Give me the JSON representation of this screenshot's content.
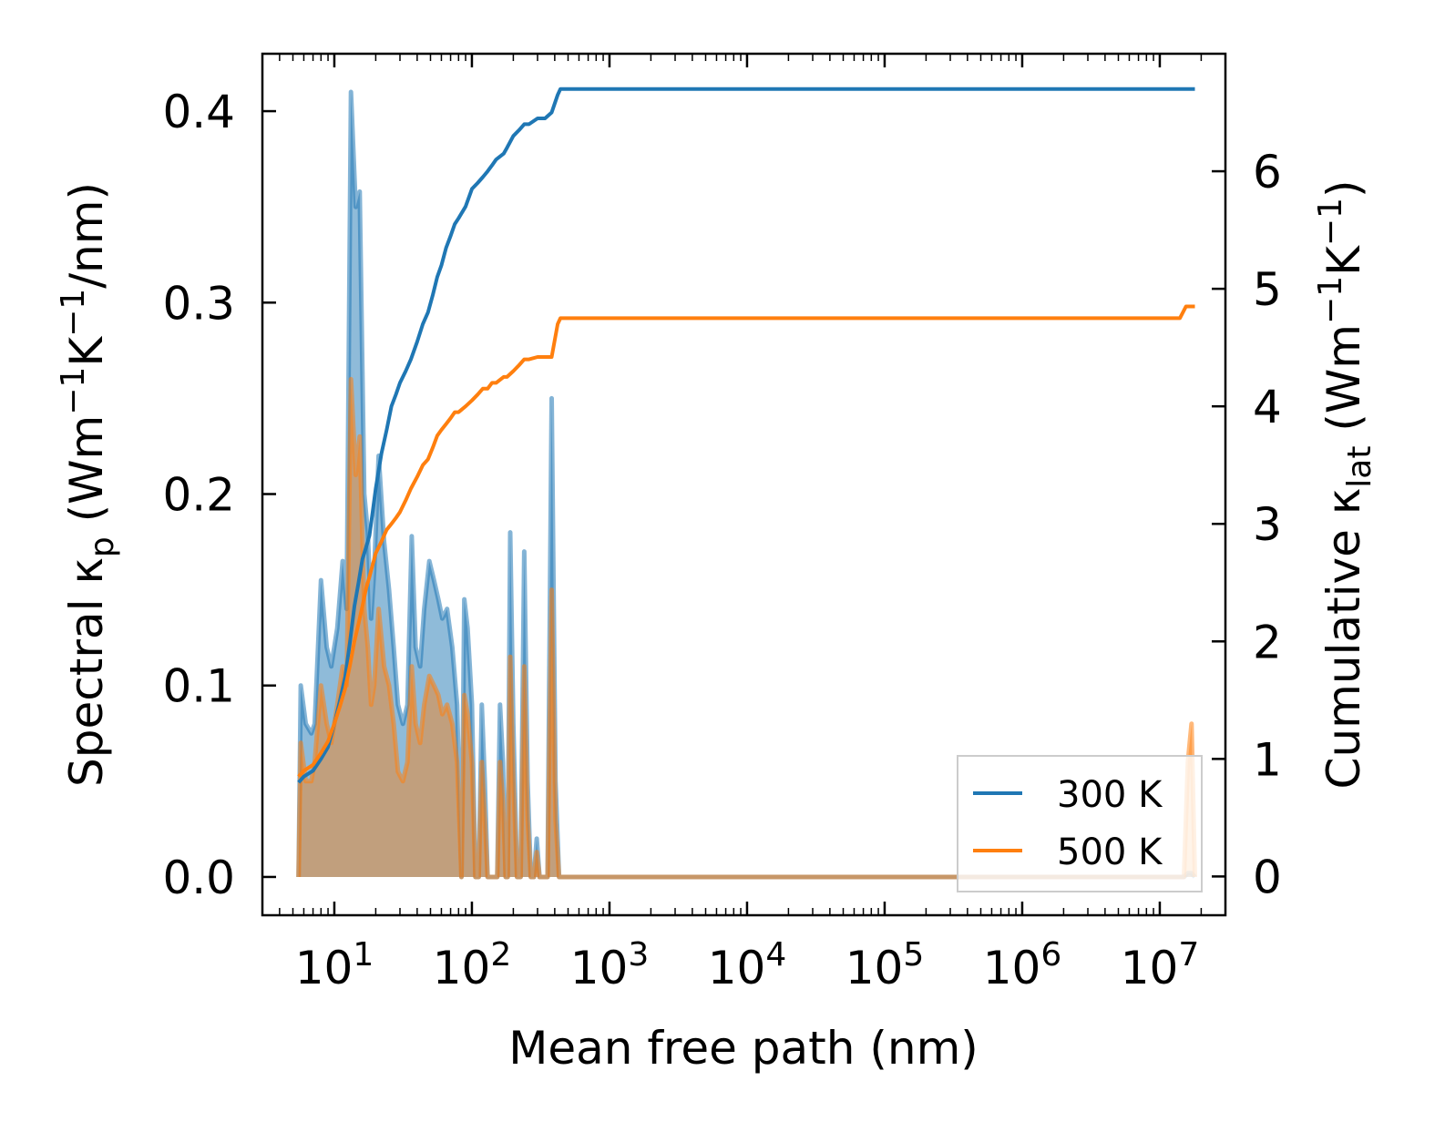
{
  "chart_data": {
    "type": "line",
    "title": "",
    "xlabel": "Mean free path (nm)",
    "x_scale": "log",
    "xlim": [
      3.0,
      30000000
    ],
    "x_ticks": [
      {
        "value": 10,
        "base": "10",
        "exp": "1"
      },
      {
        "value": 100,
        "base": "10",
        "exp": "2"
      },
      {
        "value": 1000,
        "base": "10",
        "exp": "3"
      },
      {
        "value": 10000,
        "base": "10",
        "exp": "4"
      },
      {
        "value": 100000,
        "base": "10",
        "exp": "5"
      },
      {
        "value": 1000000,
        "base": "10",
        "exp": "6"
      },
      {
        "value": 10000000,
        "base": "10",
        "exp": "7"
      }
    ],
    "left_axis": {
      "label_parts": [
        "Spectral κ",
        "p",
        " (Wm",
        "−1",
        "K",
        "−1",
        "/nm)"
      ],
      "label_roles": [
        "text",
        "sub",
        "text",
        "sup",
        "text",
        "sup",
        "text"
      ],
      "ylim": [
        -0.02,
        0.43
      ],
      "ticks": [
        0.0,
        0.1,
        0.2,
        0.3,
        0.4
      ],
      "tick_labels": [
        "0.0",
        "0.1",
        "0.2",
        "0.3",
        "0.4"
      ]
    },
    "right_axis": {
      "label_parts": [
        "Cumulative κ",
        "lat",
        " (Wm",
        "−1",
        "K",
        "−1",
        ")"
      ],
      "label_roles": [
        "text",
        "sub",
        "text",
        "sup",
        "text",
        "sup",
        "text"
      ],
      "ylim": [
        -0.33,
        7.0
      ],
      "ticks": [
        0,
        1,
        2,
        3,
        4,
        5,
        6
      ],
      "tick_labels": [
        "0",
        "1",
        "2",
        "3",
        "4",
        "5",
        "6"
      ]
    },
    "legend": {
      "position": "lower right",
      "entries": [
        {
          "label": "300 K",
          "color": "#1f77b4"
        },
        {
          "label": "500 K",
          "color": "#ff7f0e"
        }
      ]
    },
    "series": [
      {
        "name": "300 K",
        "color": "#1f77b4",
        "fill_color": "#1f77b4",
        "spectral_x": [
          5.5,
          5.7,
          6.2,
          6.8,
          7.2,
          8.0,
          8.8,
          9.5,
          10.5,
          11.5,
          12.3,
          13.2,
          14.3,
          15.3,
          16.5,
          17.5,
          18.5,
          19.5,
          21,
          23,
          25,
          27,
          29,
          31.5,
          34,
          36.5,
          39,
          42,
          45,
          49,
          53,
          57,
          61,
          66,
          72,
          78,
          84,
          88,
          93,
          100,
          106,
          112,
          118,
          124,
          130,
          145,
          153,
          160,
          168,
          176,
          182,
          190,
          200,
          213,
          226,
          240,
          254,
          268,
          282,
          296,
          310,
          330,
          355,
          380,
          405,
          430,
          460,
          500,
          15000000,
          16000000,
          17000000,
          18000000
        ],
        "spectral_y": [
          0.0,
          0.1,
          0.08,
          0.075,
          0.08,
          0.155,
          0.12,
          0.11,
          0.13,
          0.165,
          0.14,
          0.41,
          0.35,
          0.358,
          0.2,
          0.18,
          0.135,
          0.16,
          0.22,
          0.175,
          0.15,
          0.12,
          0.09,
          0.08,
          0.09,
          0.178,
          0.12,
          0.11,
          0.14,
          0.165,
          0.155,
          0.145,
          0.135,
          0.14,
          0.12,
          0.09,
          0.0,
          0.145,
          0.13,
          0.09,
          0.0,
          0.0,
          0.09,
          0.05,
          0.0,
          0.0,
          0.0,
          0.09,
          0.06,
          0.0,
          0.0,
          0.18,
          0.08,
          0.0,
          0.0,
          0.17,
          0.05,
          0.0,
          0.0,
          0.02,
          0.0,
          0.0,
          0.0,
          0.25,
          0.05,
          0.0,
          0.0,
          0.0,
          0.0,
          0.002,
          0.002,
          0.0
        ],
        "cumulative_x": [
          5.5,
          6,
          7,
          8,
          9,
          10,
          11,
          12,
          13,
          14,
          15,
          16,
          17,
          18,
          19,
          20,
          22,
          24,
          26,
          28,
          30,
          33,
          36,
          40,
          44,
          48,
          52,
          56,
          60,
          65,
          70,
          75,
          80,
          90,
          100,
          110,
          120,
          130,
          140,
          150,
          170,
          180,
          200,
          220,
          240,
          260,
          300,
          340,
          380,
          420,
          440,
          500,
          1000,
          10000,
          100000,
          1000000,
          10000000,
          18000000
        ],
        "cumulative_y": [
          0.8,
          0.85,
          0.9,
          1.0,
          1.1,
          1.3,
          1.5,
          1.7,
          2.0,
          2.3,
          2.5,
          2.7,
          2.8,
          2.9,
          3.1,
          3.3,
          3.6,
          3.8,
          4.0,
          4.1,
          4.2,
          4.3,
          4.4,
          4.55,
          4.7,
          4.8,
          4.95,
          5.1,
          5.2,
          5.35,
          5.45,
          5.55,
          5.6,
          5.7,
          5.85,
          5.9,
          5.95,
          6.0,
          6.05,
          6.1,
          6.15,
          6.2,
          6.3,
          6.35,
          6.4,
          6.4,
          6.45,
          6.45,
          6.5,
          6.65,
          6.7,
          6.7,
          6.7,
          6.7,
          6.7,
          6.7,
          6.7,
          6.7
        ]
      },
      {
        "name": "500 K",
        "color": "#ff7f0e",
        "fill_color": "#ff7f0e",
        "spectral_x": [
          5.5,
          5.7,
          6.2,
          6.8,
          7.2,
          8.0,
          8.8,
          9.5,
          10.5,
          11.5,
          12.3,
          13.2,
          14.3,
          15.3,
          16.5,
          17.5,
          18.5,
          19.5,
          21,
          23,
          25,
          27,
          29,
          31.5,
          34,
          36.5,
          39,
          42,
          45,
          49,
          53,
          57,
          61,
          66,
          72,
          78,
          84,
          88,
          93,
          100,
          106,
          112,
          118,
          124,
          130,
          145,
          153,
          160,
          168,
          176,
          182,
          190,
          200,
          213,
          226,
          240,
          254,
          268,
          282,
          296,
          310,
          330,
          355,
          380,
          405,
          430,
          460,
          500,
          14500000,
          15000000,
          16000000,
          17000000,
          18000000
        ],
        "spectral_y": [
          0.0,
          0.07,
          0.05,
          0.05,
          0.06,
          0.1,
          0.08,
          0.07,
          0.09,
          0.11,
          0.1,
          0.26,
          0.21,
          0.23,
          0.14,
          0.12,
          0.09,
          0.1,
          0.14,
          0.11,
          0.1,
          0.08,
          0.055,
          0.05,
          0.06,
          0.11,
          0.08,
          0.07,
          0.09,
          0.105,
          0.1,
          0.095,
          0.085,
          0.09,
          0.08,
          0.06,
          0.0,
          0.095,
          0.085,
          0.06,
          0.0,
          0.0,
          0.06,
          0.03,
          0.0,
          0.0,
          0.0,
          0.06,
          0.04,
          0.0,
          0.0,
          0.115,
          0.05,
          0.0,
          0.0,
          0.11,
          0.03,
          0.0,
          0.0,
          0.013,
          0.0,
          0.0,
          0.0,
          0.15,
          0.03,
          0.0,
          0.0,
          0.0,
          0.0,
          0.0,
          0.06,
          0.08,
          0.0
        ],
        "cumulative_x": [
          5.5,
          6,
          7,
          8,
          9,
          10,
          11,
          12,
          13,
          14,
          15,
          16,
          17,
          18,
          19,
          20,
          22,
          24,
          26,
          28,
          30,
          33,
          36,
          40,
          44,
          48,
          52,
          56,
          60,
          65,
          70,
          75,
          80,
          90,
          100,
          110,
          120,
          130,
          140,
          150,
          170,
          180,
          200,
          220,
          240,
          260,
          300,
          340,
          380,
          420,
          440,
          500,
          1000,
          10000,
          100000,
          1000000,
          10000000,
          14000000,
          15500000,
          18000000
        ],
        "cumulative_y": [
          0.85,
          0.9,
          0.95,
          1.05,
          1.15,
          1.3,
          1.45,
          1.6,
          1.8,
          2.0,
          2.15,
          2.3,
          2.45,
          2.55,
          2.65,
          2.75,
          2.85,
          2.95,
          3.0,
          3.05,
          3.1,
          3.2,
          3.3,
          3.4,
          3.5,
          3.55,
          3.65,
          3.75,
          3.8,
          3.85,
          3.9,
          3.95,
          3.95,
          4.0,
          4.05,
          4.1,
          4.15,
          4.15,
          4.2,
          4.2,
          4.25,
          4.25,
          4.3,
          4.35,
          4.4,
          4.4,
          4.42,
          4.42,
          4.42,
          4.7,
          4.75,
          4.75,
          4.75,
          4.75,
          4.75,
          4.75,
          4.75,
          4.75,
          4.85,
          4.85
        ]
      }
    ]
  }
}
